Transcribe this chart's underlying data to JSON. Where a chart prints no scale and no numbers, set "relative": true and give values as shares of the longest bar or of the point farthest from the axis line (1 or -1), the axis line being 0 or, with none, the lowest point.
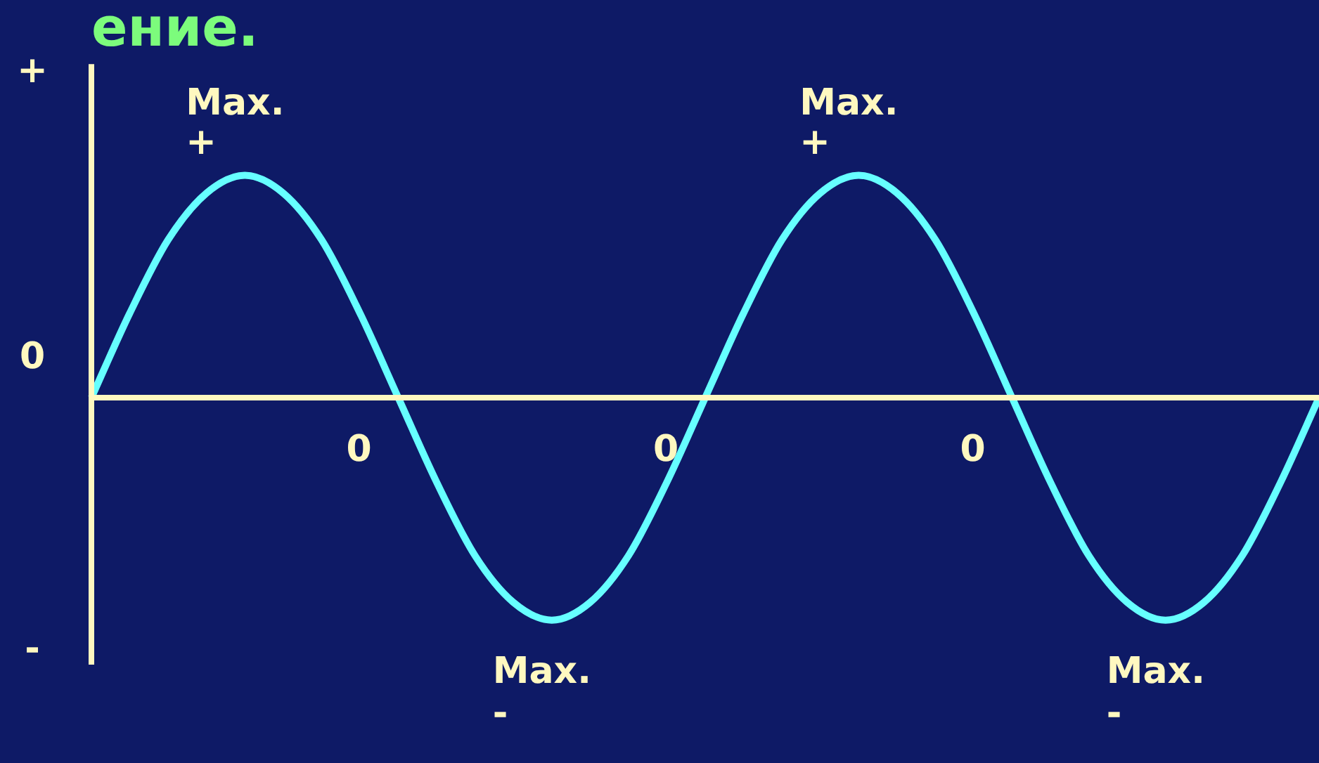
{
  "chart_data": {
    "type": "line",
    "title": "ение.",
    "relative": true,
    "color": "#66ffff",
    "categories": [
      null,
      null,
      null,
      null,
      null,
      null,
      null,
      null,
      null,
      null,
      null,
      null,
      null,
      null,
      null,
      null,
      null,
      null,
      null,
      null,
      null,
      null,
      null,
      null,
      null,
      null,
      null,
      null,
      null,
      null,
      null,
      null,
      null
    ],
    "values": [
      0,
      0.38,
      0.71,
      0.92,
      1,
      0.92,
      0.71,
      0.38,
      0,
      -0.38,
      -0.71,
      -0.92,
      -1,
      -0.92,
      -0.71,
      -0.38,
      0,
      0.38,
      0.71,
      0.92,
      1,
      0.92,
      0.71,
      0.38,
      0,
      -0.38,
      -0.71,
      -0.92,
      -1,
      -0.92,
      -0.71,
      -0.38,
      0
    ],
    "ref_lines": [
      {
        "axis": "y",
        "value": 0,
        "color": "#fff8c0"
      }
    ],
    "annotations": [
      "+",
      "0",
      "-",
      "0",
      "0",
      "0",
      {
        "text": "Max. +",
        "y": 1
      },
      {
        "text": "Max. +",
        "y": 1
      },
      {
        "text": "Max. -",
        "y": -1
      },
      {
        "text": "Max. -",
        "y": -1
      }
    ],
    "marker": "none",
    "line_style": "solid"
  }
}
